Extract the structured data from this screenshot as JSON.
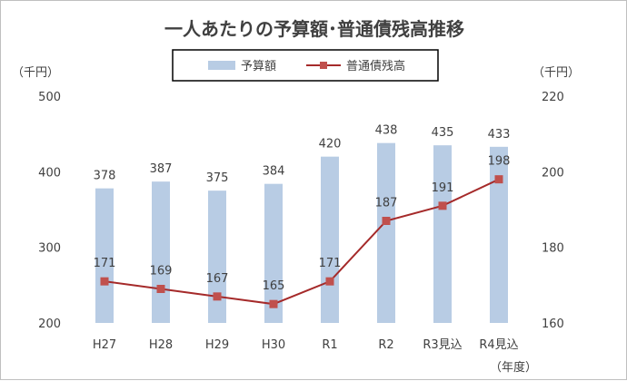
{
  "chart_data": {
    "type": "bar",
    "title": "一人あたりの予算額･普通債残高推移",
    "categories": [
      "H27",
      "H28",
      "H29",
      "H30",
      "R1",
      "R2",
      "R3見込",
      "R4見込"
    ],
    "series": [
      {
        "name": "予算額",
        "type": "bar",
        "axis": "left",
        "values": [
          378,
          387,
          375,
          384,
          420,
          438,
          435,
          433
        ],
        "color": "#b8cce4"
      },
      {
        "name": "普通債残高",
        "type": "line",
        "axis": "right",
        "values": [
          171,
          169,
          167,
          165,
          171,
          187,
          191,
          198
        ],
        "color": "#c0504d"
      }
    ],
    "y_left": {
      "unit": "（千円）",
      "range": [
        200,
        500
      ],
      "ticks": [
        200,
        300,
        400,
        500
      ]
    },
    "y_right": {
      "unit": "（千円）",
      "range": [
        160,
        220
      ],
      "ticks": [
        160,
        180,
        200,
        220
      ]
    },
    "x_unit": "（年度）",
    "grid": false,
    "legend": "top-center"
  }
}
